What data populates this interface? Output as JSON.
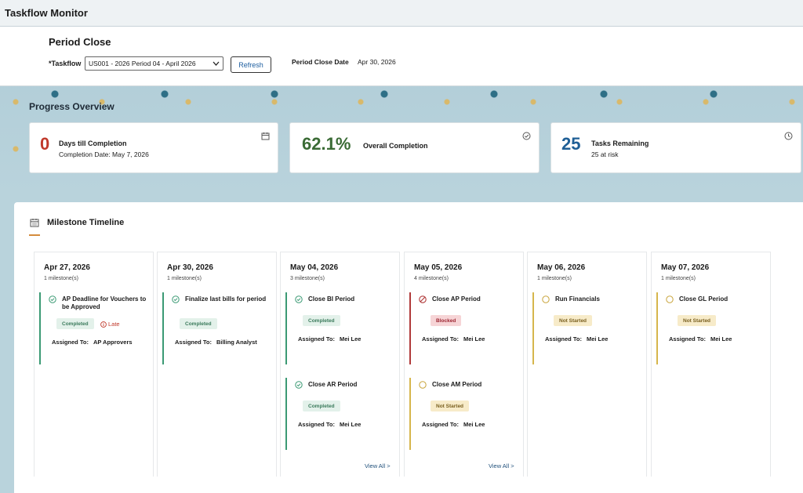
{
  "app": {
    "title": "Taskflow Monitor"
  },
  "header": {
    "page_title": "Period Close",
    "taskflow_label": "*Taskflow",
    "taskflow_value": "US001 - 2026 Period 04 - April 2026",
    "refresh_label": "Refresh",
    "period_close_date_label": "Period Close Date",
    "period_close_date_value": "Apr 30, 2026"
  },
  "progress": {
    "title": "Progress Overview",
    "cards": [
      {
        "value": "0",
        "title": "Days till Completion",
        "subtitle": "Completion Date: May 7, 2026",
        "icon": "calendar-icon",
        "color": "#c0392b"
      },
      {
        "value": "62.1%",
        "title": "Overall Completion",
        "subtitle": "",
        "icon": "check-circle-icon",
        "color": "#3a6b35"
      },
      {
        "value": "25",
        "title": "Tasks Remaining",
        "subtitle": "25 at risk",
        "icon": "clock-icon",
        "color": "#1f5f96"
      }
    ]
  },
  "milestones": {
    "title": "Milestone Timeline",
    "view_all_label": "View All >",
    "columns": [
      {
        "date": "Apr 27, 2026",
        "count": "1 milestone(s)",
        "items": [
          {
            "name": "AP Deadline for Vouchers to be Approved",
            "status": "Completed",
            "late": "Late",
            "assigned_label": "Assigned To:",
            "assignee": "AP Approvers"
          }
        ]
      },
      {
        "date": "Apr 30, 2026",
        "count": "1 milestone(s)",
        "items": [
          {
            "name": "Finalize last bills for period",
            "status": "Completed",
            "assigned_label": "Assigned To:",
            "assignee": "Billing Analyst"
          }
        ]
      },
      {
        "date": "May 04, 2026",
        "count": "3 milestone(s)",
        "items": [
          {
            "name": "Close BI Period",
            "status": "Completed",
            "assigned_label": "Assigned To:",
            "assignee": "Mei Lee"
          },
          {
            "name": "Close AR Period",
            "status": "Completed",
            "assigned_label": "Assigned To:",
            "assignee": "Mei Lee"
          }
        ]
      },
      {
        "date": "May 05, 2026",
        "count": "4 milestone(s)",
        "items": [
          {
            "name": "Close AP Period",
            "status": "Blocked",
            "assigned_label": "Assigned To:",
            "assignee": "Mei Lee"
          },
          {
            "name": "Close AM Period",
            "status": "Not Started",
            "assigned_label": "Assigned To:",
            "assignee": "Mei Lee"
          }
        ]
      },
      {
        "date": "May 06, 2026",
        "count": "1 milestone(s)",
        "items": [
          {
            "name": "Run Financials",
            "status": "Not Started",
            "assigned_label": "Assigned To:",
            "assignee": "Mei Lee"
          }
        ]
      },
      {
        "date": "May 07, 2026",
        "count": "1 milestone(s)",
        "items": [
          {
            "name": "Close GL Period",
            "status": "Not Started",
            "assigned_label": "Assigned To:",
            "assignee": "Mei Lee"
          }
        ]
      }
    ]
  },
  "colors": {
    "completed": "#3b9a74",
    "blocked": "#b03a3a",
    "not_started": "#d6b64c",
    "accent": "#d48b3c"
  }
}
